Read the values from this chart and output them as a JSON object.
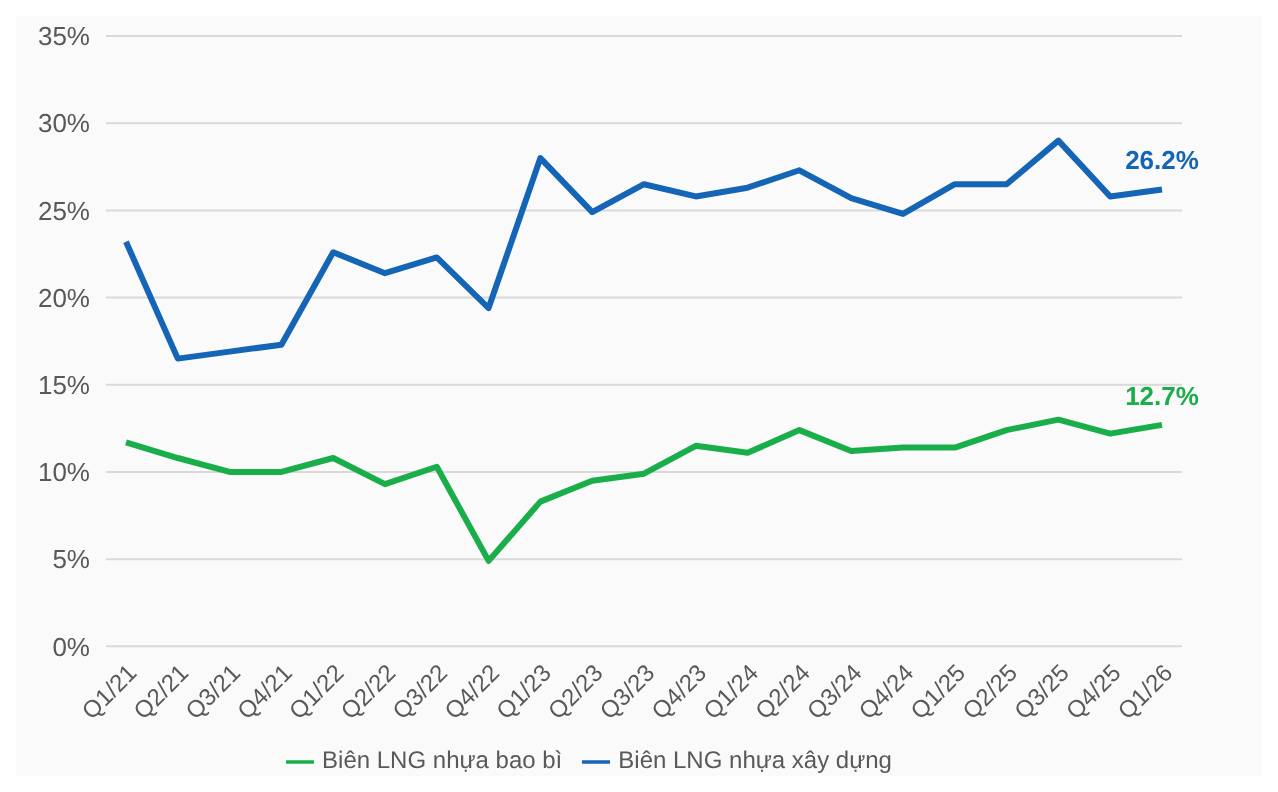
{
  "chart_data": {
    "type": "line",
    "categories": [
      "Q1/21",
      "Q2/21",
      "Q3/21",
      "Q4/21",
      "Q1/22",
      "Q2/22",
      "Q3/22",
      "Q4/22",
      "Q1/23",
      "Q2/23",
      "Q3/23",
      "Q4/23",
      "Q1/24",
      "Q2/24",
      "Q3/24",
      "Q4/24",
      "Q1/25",
      "Q2/25",
      "Q3/25",
      "Q4/25",
      "Q1/26"
    ],
    "series": [
      {
        "name": "Biên LNG nhựa bao bì",
        "color": "#1aae4b",
        "values": [
          11.7,
          10.8,
          10.0,
          10.0,
          10.8,
          9.3,
          10.3,
          4.9,
          8.3,
          9.5,
          9.9,
          11.5,
          11.1,
          12.4,
          11.2,
          11.4,
          11.4,
          12.4,
          13.0,
          12.2,
          12.7
        ],
        "value_labels": [
          null,
          null,
          null,
          null,
          null,
          null,
          null,
          null,
          null,
          null,
          null,
          null,
          null,
          null,
          null,
          null,
          null,
          null,
          null,
          null,
          "12.7%"
        ]
      },
      {
        "name": "Biên LNG nhựa xây dựng",
        "color": "#1565b7",
        "values": [
          23.2,
          16.5,
          16.9,
          17.3,
          22.6,
          21.4,
          22.3,
          19.4,
          28.0,
          24.9,
          26.5,
          25.8,
          26.3,
          27.3,
          25.7,
          24.8,
          26.5,
          26.5,
          29.0,
          25.8,
          26.2
        ],
        "value_labels": [
          null,
          null,
          null,
          null,
          null,
          null,
          null,
          null,
          null,
          null,
          null,
          null,
          null,
          null,
          null,
          null,
          null,
          null,
          null,
          null,
          "26.2%"
        ]
      }
    ],
    "ylim": [
      0,
      35
    ],
    "yticks": [
      {
        "value": 0,
        "label": "0%"
      },
      {
        "value": 5,
        "label": "5%"
      },
      {
        "value": 10,
        "label": "10%"
      },
      {
        "value": 15,
        "label": "15%"
      },
      {
        "value": 20,
        "label": "20%"
      },
      {
        "value": 25,
        "label": "25%"
      },
      {
        "value": 30,
        "label": "30%"
      },
      {
        "value": 35,
        "label": "35%"
      }
    ],
    "grid": "y",
    "legend": "bottom",
    "marker": "none",
    "line_style": "solid"
  }
}
